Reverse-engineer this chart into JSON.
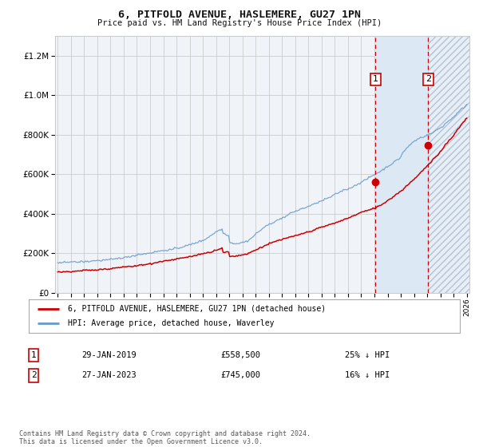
{
  "title": "6, PITFOLD AVENUE, HASLEMERE, GU27 1PN",
  "subtitle": "Price paid vs. HM Land Registry's House Price Index (HPI)",
  "legend_line1": "6, PITFOLD AVENUE, HASLEMERE, GU27 1PN (detached house)",
  "legend_line2": "HPI: Average price, detached house, Waverley",
  "annotation1_date": "29-JAN-2019",
  "annotation1_price": "£558,500",
  "annotation1_note": "25% ↓ HPI",
  "annotation2_date": "27-JAN-2023",
  "annotation2_price": "£745,000",
  "annotation2_note": "16% ↓ HPI",
  "footer": "Contains HM Land Registry data © Crown copyright and database right 2024.\nThis data is licensed under the Open Government Licence v3.0.",
  "hpi_color": "#6699cc",
  "price_color": "#cc0000",
  "marker_color": "#cc0000",
  "dashed_line_color": "#cc0000",
  "highlight_color": "#dce9f5",
  "grid_color": "#cccccc",
  "background_color": "#ffffff",
  "plot_bg_color": "#f0f4f8",
  "ylim_max": 1300000,
  "start_year": 1995,
  "end_year": 2026,
  "sale1_year": 2019.08,
  "sale1_price": 558500,
  "sale2_year": 2023.08,
  "sale2_price": 745000
}
